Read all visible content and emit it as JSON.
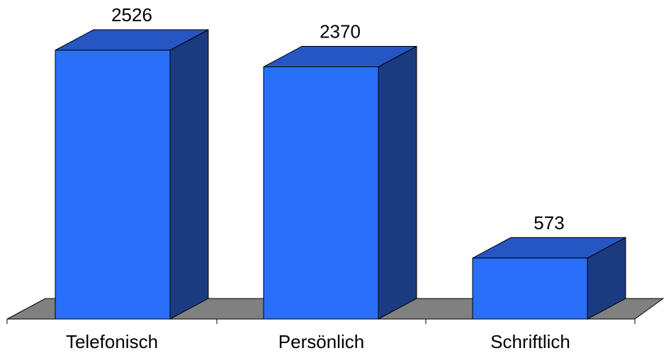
{
  "chart_data": {
    "type": "bar",
    "style": "3d-column",
    "categories": [
      "Telefonisch",
      "Persönlich",
      "Schriftlich"
    ],
    "values": [
      2526,
      2370,
      573
    ],
    "data_labels": [
      "2526",
      "2370",
      "573"
    ],
    "title": "",
    "xlabel": "",
    "ylabel": "",
    "ylim": [
      0,
      2750
    ],
    "grid": false,
    "legend": "none",
    "colors": {
      "bar_front": "#2a6ff9",
      "bar_top": "#2556c4",
      "bar_side": "#1a3b80",
      "floor": "#808080",
      "outline": "#000000"
    }
  }
}
